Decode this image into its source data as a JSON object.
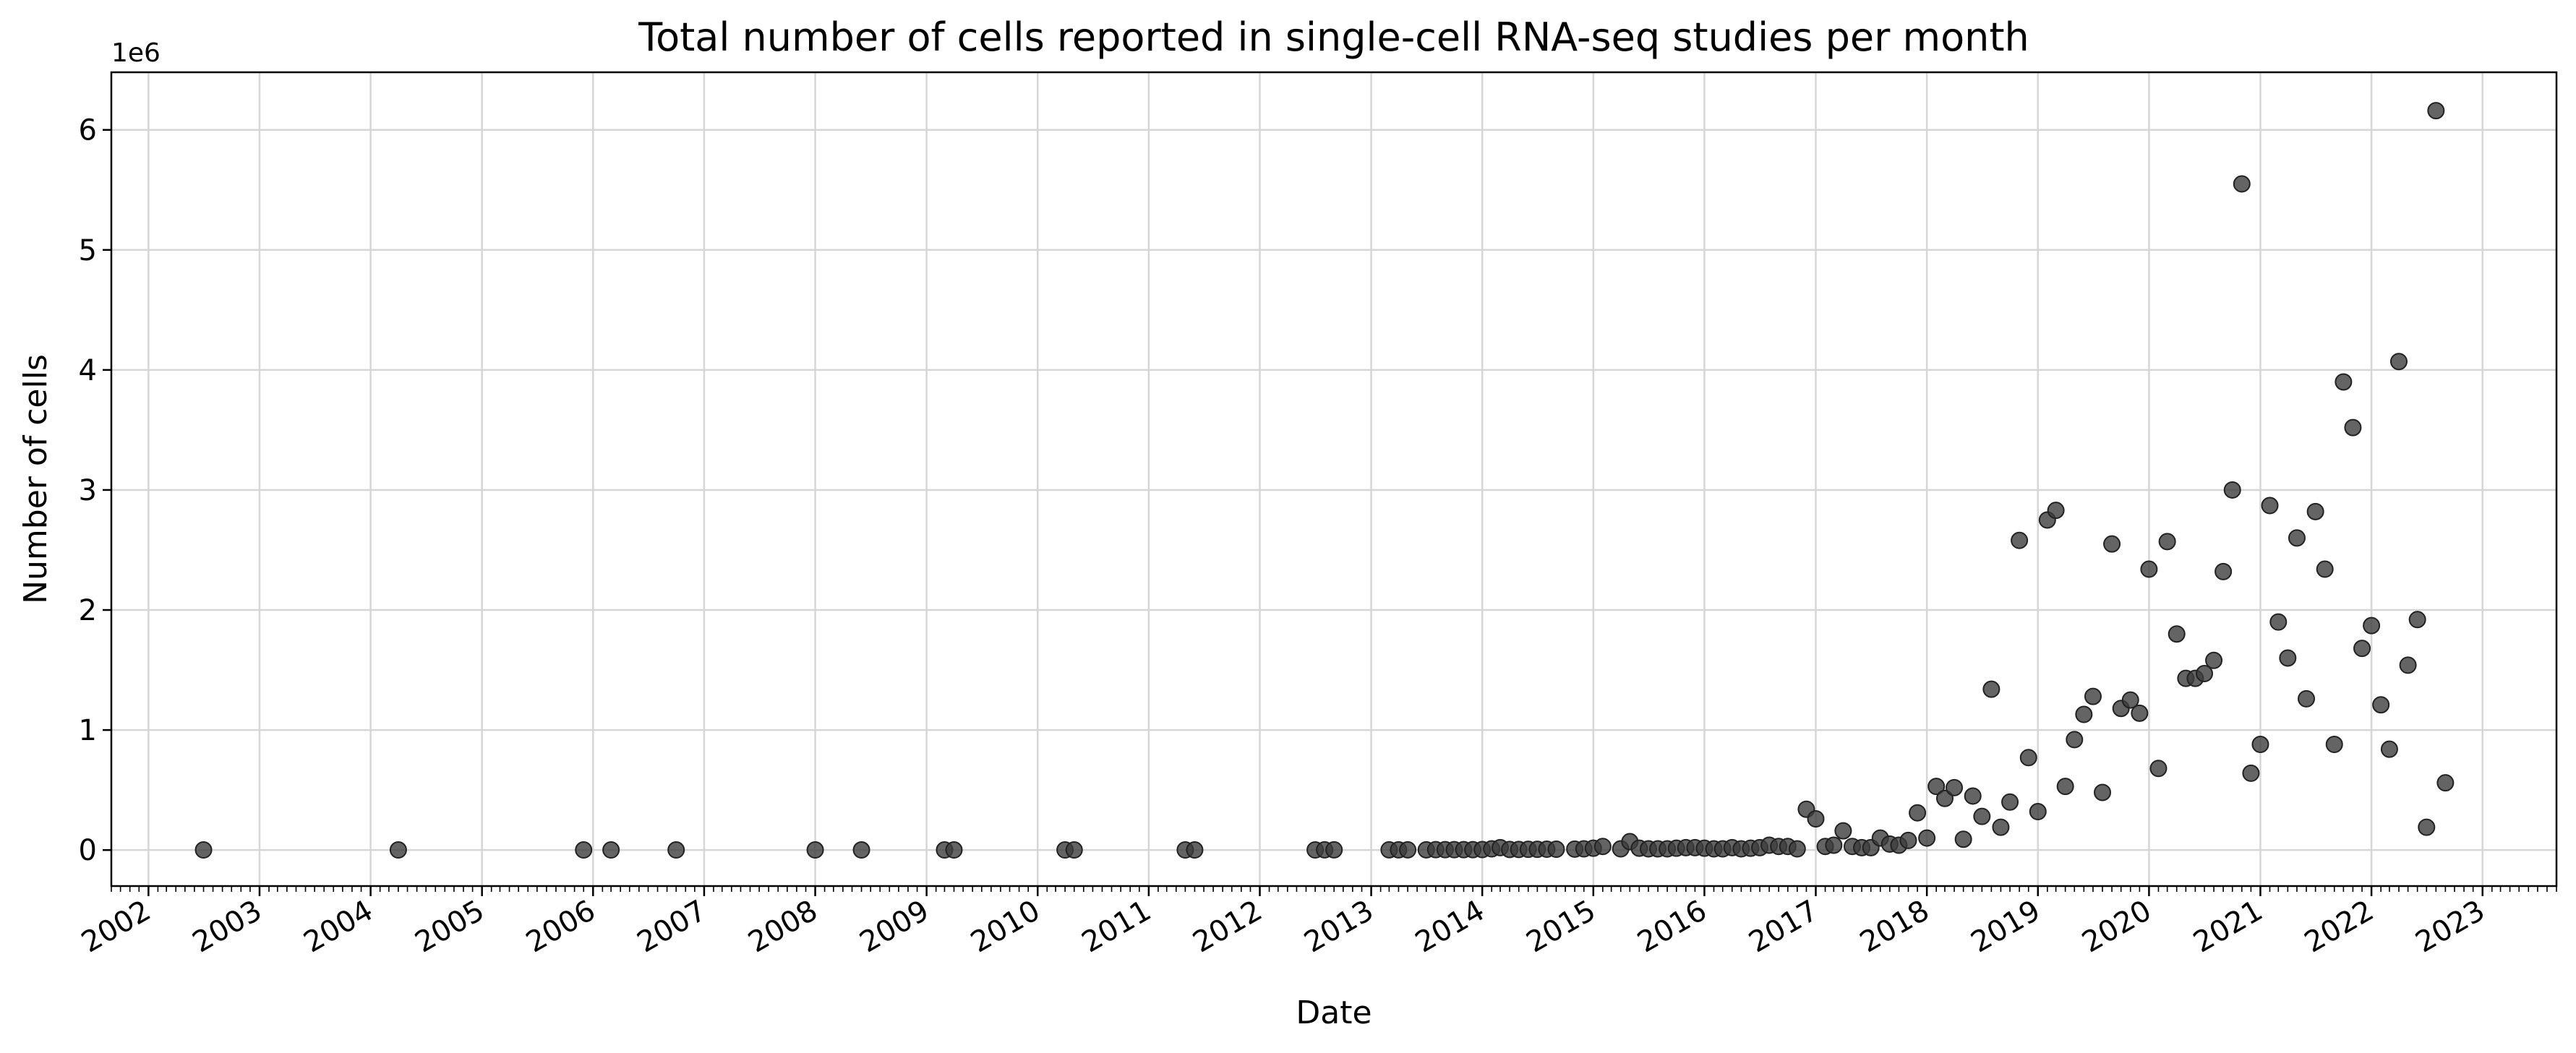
{
  "chart_data": {
    "type": "scatter",
    "title": "Total number of cells reported in single-cell RNA-seq studies per month",
    "xlabel": "Date",
    "ylabel": "Number of cells",
    "y_offset_label": "1e6",
    "xlim": [
      "2001-09-01",
      "2023-09-01"
    ],
    "ylim": [
      -0.3,
      6.48
    ],
    "y_ticks": [
      0,
      1,
      2,
      3,
      4,
      5,
      6
    ],
    "x_ticks": [
      "2002",
      "2003",
      "2004",
      "2005",
      "2006",
      "2007",
      "2008",
      "2009",
      "2010",
      "2011",
      "2012",
      "2013",
      "2014",
      "2015",
      "2016",
      "2017",
      "2018",
      "2019",
      "2020",
      "2021",
      "2022",
      "2023"
    ],
    "grid": true,
    "marker_color": "#3d3d3d",
    "series": [
      {
        "points": [
          [
            "2002-07-01",
            0.001
          ],
          [
            "2004-04-01",
            0.001
          ],
          [
            "2005-12-01",
            0.001
          ],
          [
            "2006-03-01",
            0.001
          ],
          [
            "2006-10-01",
            0.001
          ],
          [
            "2008-01-01",
            0.001
          ],
          [
            "2008-06-01",
            0.001
          ],
          [
            "2009-03-01",
            0.001
          ],
          [
            "2009-04-01",
            0.001
          ],
          [
            "2010-04-01",
            0.001
          ],
          [
            "2010-05-01",
            0.001
          ],
          [
            "2011-05-01",
            0.001
          ],
          [
            "2011-06-01",
            0.001
          ],
          [
            "2012-07-01",
            0.001
          ],
          [
            "2012-08-01",
            0.002
          ],
          [
            "2012-09-01",
            0.002
          ],
          [
            "2013-03-01",
            0.002
          ],
          [
            "2013-04-01",
            0.002
          ],
          [
            "2013-05-01",
            0.002
          ],
          [
            "2013-07-01",
            0.002
          ],
          [
            "2013-08-01",
            0.003
          ],
          [
            "2013-09-01",
            0.003
          ],
          [
            "2013-10-01",
            0.003
          ],
          [
            "2013-11-01",
            0.003
          ],
          [
            "2013-12-01",
            0.003
          ],
          [
            "2014-01-01",
            0.004
          ],
          [
            "2014-02-01",
            0.01
          ],
          [
            "2014-03-01",
            0.02
          ],
          [
            "2014-04-01",
            0.005
          ],
          [
            "2014-05-01",
            0.005
          ],
          [
            "2014-06-01",
            0.006
          ],
          [
            "2014-07-01",
            0.006
          ],
          [
            "2014-08-01",
            0.007
          ],
          [
            "2014-09-01",
            0.007
          ],
          [
            "2014-11-01",
            0.008
          ],
          [
            "2014-12-01",
            0.01
          ],
          [
            "2015-01-01",
            0.015
          ],
          [
            "2015-02-01",
            0.03
          ],
          [
            "2015-04-01",
            0.01
          ],
          [
            "2015-05-01",
            0.07
          ],
          [
            "2015-06-01",
            0.015
          ],
          [
            "2015-07-01",
            0.01
          ],
          [
            "2015-08-01",
            0.01
          ],
          [
            "2015-09-01",
            0.01
          ],
          [
            "2015-10-01",
            0.015
          ],
          [
            "2015-11-01",
            0.02
          ],
          [
            "2015-12-01",
            0.02
          ],
          [
            "2016-01-01",
            0.015
          ],
          [
            "2016-02-01",
            0.01
          ],
          [
            "2016-03-01",
            0.01
          ],
          [
            "2016-04-01",
            0.02
          ],
          [
            "2016-05-01",
            0.01
          ],
          [
            "2016-06-01",
            0.015
          ],
          [
            "2016-07-01",
            0.02
          ],
          [
            "2016-08-01",
            0.04
          ],
          [
            "2016-09-01",
            0.03
          ],
          [
            "2016-10-01",
            0.03
          ],
          [
            "2016-11-01",
            0.01
          ],
          [
            "2016-12-01",
            0.34
          ],
          [
            "2017-01-01",
            0.26
          ],
          [
            "2017-02-01",
            0.03
          ],
          [
            "2017-03-01",
            0.04
          ],
          [
            "2017-04-01",
            0.16
          ],
          [
            "2017-05-01",
            0.03
          ],
          [
            "2017-06-01",
            0.02
          ],
          [
            "2017-07-01",
            0.02
          ],
          [
            "2017-08-01",
            0.1
          ],
          [
            "2017-09-01",
            0.05
          ],
          [
            "2017-10-01",
            0.04
          ],
          [
            "2017-11-01",
            0.08
          ],
          [
            "2017-12-01",
            0.31
          ],
          [
            "2018-01-01",
            0.1
          ],
          [
            "2018-02-01",
            0.53
          ],
          [
            "2018-03-01",
            0.43
          ],
          [
            "2018-04-01",
            0.52
          ],
          [
            "2018-05-01",
            0.09
          ],
          [
            "2018-06-01",
            0.45
          ],
          [
            "2018-07-01",
            0.28
          ],
          [
            "2018-08-01",
            1.34
          ],
          [
            "2018-09-01",
            0.19
          ],
          [
            "2018-10-01",
            0.4
          ],
          [
            "2018-11-01",
            2.58
          ],
          [
            "2018-12-01",
            0.77
          ],
          [
            "2019-01-01",
            0.32
          ],
          [
            "2019-02-01",
            2.75
          ],
          [
            "2019-03-01",
            2.83
          ],
          [
            "2019-04-01",
            0.53
          ],
          [
            "2019-05-01",
            0.92
          ],
          [
            "2019-06-01",
            1.13
          ],
          [
            "2019-07-01",
            1.28
          ],
          [
            "2019-08-01",
            0.48
          ],
          [
            "2019-09-01",
            2.55
          ],
          [
            "2019-10-01",
            1.18
          ],
          [
            "2019-11-01",
            1.25
          ],
          [
            "2019-12-01",
            1.14
          ],
          [
            "2020-01-01",
            2.34
          ],
          [
            "2020-02-01",
            0.68
          ],
          [
            "2020-03-01",
            2.57
          ],
          [
            "2020-04-01",
            1.8
          ],
          [
            "2020-05-01",
            1.43
          ],
          [
            "2020-06-01",
            1.43
          ],
          [
            "2020-07-01",
            1.47
          ],
          [
            "2020-08-01",
            1.58
          ],
          [
            "2020-09-01",
            2.32
          ],
          [
            "2020-10-01",
            3.0
          ],
          [
            "2020-11-01",
            5.55
          ],
          [
            "2020-12-01",
            0.64
          ],
          [
            "2021-01-01",
            0.88
          ],
          [
            "2021-02-01",
            2.87
          ],
          [
            "2021-03-01",
            1.9
          ],
          [
            "2021-04-01",
            1.6
          ],
          [
            "2021-05-01",
            2.6
          ],
          [
            "2021-06-01",
            1.26
          ],
          [
            "2021-07-01",
            2.82
          ],
          [
            "2021-08-01",
            2.34
          ],
          [
            "2021-09-01",
            0.88
          ],
          [
            "2021-10-01",
            3.9
          ],
          [
            "2021-11-01",
            3.52
          ],
          [
            "2021-12-01",
            1.68
          ],
          [
            "2022-01-01",
            1.87
          ],
          [
            "2022-02-01",
            1.21
          ],
          [
            "2022-03-01",
            0.84
          ],
          [
            "2022-04-01",
            4.07
          ],
          [
            "2022-05-01",
            1.54
          ],
          [
            "2022-06-01",
            1.92
          ],
          [
            "2022-07-01",
            0.19
          ],
          [
            "2022-08-01",
            6.16
          ],
          [
            "2022-09-01",
            0.56
          ]
        ]
      }
    ]
  }
}
